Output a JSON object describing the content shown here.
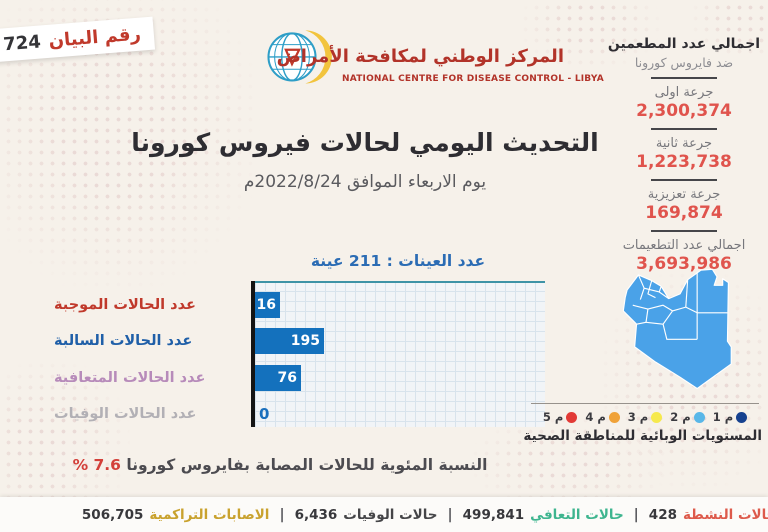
{
  "ribbon": {
    "label": "رقم البيان",
    "number": "724"
  },
  "logo": {
    "arabic_name": "المركز الوطني لمكافحة الأمراض",
    "english_name": "NATIONAL CENTRE FOR DISEASE CONTROL - LIBYA"
  },
  "header": {
    "title": "التحديث اليومي لحالات فيروس كورونا",
    "date_line": "يوم الاربعاء الموافق  2022/8/24م"
  },
  "vaccination_panel": {
    "heading": "اجمالي عدد المطعمين",
    "subheading": "ضد فايروس كورونا",
    "items": [
      {
        "label": "جرعة اولى",
        "value": "2,300,374"
      },
      {
        "label": "جرعة ثانية",
        "value": "1,223,738"
      },
      {
        "label": "جرعة تعزيزية",
        "value": "169,874"
      },
      {
        "label": "اجمالي عدد التطعيمات",
        "value": "3,693,986"
      }
    ]
  },
  "chart_data": {
    "type": "bar",
    "orientation": "horizontal",
    "title": "عدد العينات : 211 عينة",
    "total_samples": 211,
    "categories": [
      "عدد الحالات الموجبة",
      "عدد الحالات السالبة",
      "عدد الحالات المتعافية",
      "عدد الحالات الوفيات"
    ],
    "values": [
      16,
      195,
      76,
      0
    ],
    "bar_color": "#1471bd",
    "label_colors": [
      "#c0392b",
      "#1f5fa8",
      "#b78bba",
      "#b2b0b5"
    ],
    "grid": true,
    "legend_position": "none"
  },
  "map": {
    "region": "Libya",
    "fill_color": "#4aa2e8",
    "legend_caption": "المستويات الوبائية للمناطقة الصحية",
    "legend": [
      {
        "label": "م 1",
        "color": "#16418f"
      },
      {
        "label": "م 2",
        "color": "#59b7e8"
      },
      {
        "label": "م 3",
        "color": "#f6e94d"
      },
      {
        "label": "م 4",
        "color": "#f0a238"
      },
      {
        "label": "م 5",
        "color": "#e23a36"
      }
    ]
  },
  "percentage": {
    "text": "النسبة المئوية للحالات المصابة بفايروس كورونا",
    "value": "7.6 %"
  },
  "footer": {
    "items": [
      {
        "label": "الحالات النشطة",
        "value": "428",
        "color": "#dd5a4b"
      },
      {
        "label": "حالات التعافي",
        "value": "499,841",
        "color": "#3eb58f"
      },
      {
        "label": "حالات الوفيات",
        "value": "6,436",
        "color": "#454548"
      },
      {
        "label": "الاصابات التراكمية",
        "value": "506,705",
        "color": "#c9a22e"
      }
    ]
  }
}
